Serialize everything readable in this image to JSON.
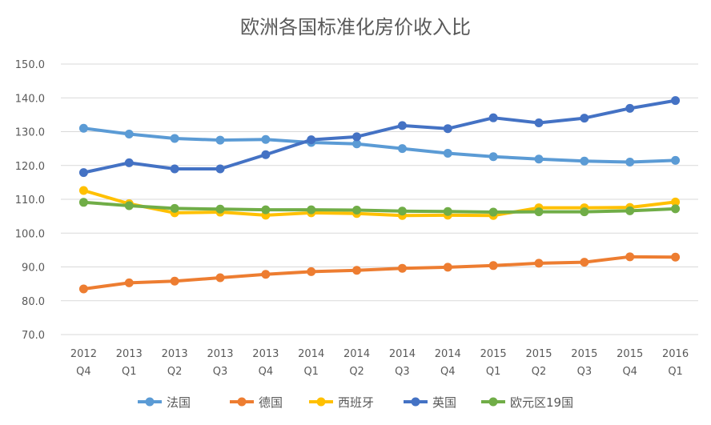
{
  "chart_data": {
    "type": "line",
    "title": "欧洲各国标准化房价收入比",
    "xlabel": "",
    "ylabel": "",
    "ylim": [
      70,
      150
    ],
    "yticks": [
      "70.0",
      "80.0",
      "90.0",
      "100.0",
      "110.0",
      "120.0",
      "130.0",
      "140.0",
      "150.0"
    ],
    "grid": "horizontal",
    "legend_position": "bottom",
    "categories": [
      [
        "2012",
        "Q4"
      ],
      [
        "2013",
        "Q1"
      ],
      [
        "2013",
        "Q2"
      ],
      [
        "2013",
        "Q3"
      ],
      [
        "2013",
        "Q4"
      ],
      [
        "2014",
        "Q1"
      ],
      [
        "2014",
        "Q2"
      ],
      [
        "2014",
        "Q3"
      ],
      [
        "2014",
        "Q4"
      ],
      [
        "2015",
        "Q1"
      ],
      [
        "2015",
        "Q2"
      ],
      [
        "2015",
        "Q3"
      ],
      [
        "2015",
        "Q4"
      ],
      [
        "2016",
        "Q1"
      ]
    ],
    "series": [
      {
        "name": "法国",
        "color": "#5b9bd5",
        "values": [
          131.0,
          129.3,
          128.0,
          127.5,
          127.7,
          126.8,
          126.4,
          125.0,
          123.6,
          122.6,
          121.9,
          121.3,
          121.0,
          121.5
        ]
      },
      {
        "name": "德国",
        "color": "#ed7d31",
        "values": [
          83.5,
          85.3,
          85.8,
          86.8,
          87.8,
          88.6,
          89.0,
          89.6,
          89.9,
          90.4,
          91.1,
          91.4,
          93.0,
          92.9
        ]
      },
      {
        "name": "西班牙",
        "color": "#ffc000",
        "values": [
          112.6,
          108.7,
          106.0,
          106.2,
          105.3,
          106.0,
          105.8,
          105.2,
          105.3,
          105.2,
          107.5,
          107.5,
          107.6,
          109.2
        ]
      },
      {
        "name": "英国",
        "color": "#4472c4",
        "values": [
          117.9,
          120.8,
          119.0,
          119.0,
          123.2,
          127.6,
          128.5,
          131.8,
          130.9,
          134.1,
          132.6,
          134.0,
          136.9,
          139.2
        ]
      },
      {
        "name": "欧元区19国",
        "color": "#70ad47",
        "values": [
          109.1,
          108.1,
          107.3,
          107.1,
          106.9,
          106.9,
          106.8,
          106.5,
          106.4,
          106.2,
          106.3,
          106.3,
          106.6,
          107.2
        ]
      }
    ]
  }
}
